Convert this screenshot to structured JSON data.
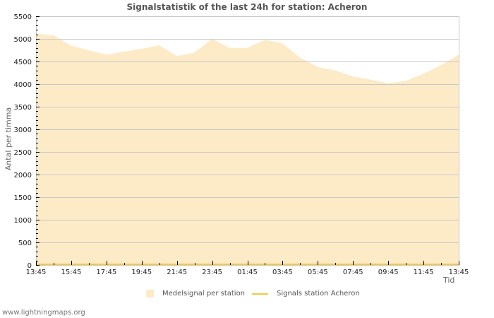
{
  "chart_data": {
    "type": "area",
    "title": "Signalstatistik of the last 24h for station: Acheron",
    "xlabel": "Tid",
    "ylabel": "Antal per timma",
    "ylim": [
      0,
      5500
    ],
    "yticks": [
      0,
      500,
      1000,
      1500,
      2000,
      2500,
      3000,
      3500,
      4000,
      4500,
      5000,
      5500
    ],
    "xtick_labels": [
      "13:45",
      "15:45",
      "17:45",
      "19:45",
      "21:45",
      "23:45",
      "01:45",
      "03:45",
      "05:45",
      "07:45",
      "09:45",
      "11:45",
      "13:45"
    ],
    "grid": true,
    "legend_position": "bottom",
    "x": [
      "13:45",
      "14:45",
      "15:45",
      "16:45",
      "17:45",
      "18:45",
      "19:45",
      "20:45",
      "21:45",
      "22:45",
      "23:45",
      "00:45",
      "01:45",
      "02:45",
      "03:45",
      "04:45",
      "05:45",
      "06:45",
      "07:45",
      "08:45",
      "09:45",
      "10:45",
      "11:45",
      "12:45",
      "13:45"
    ],
    "series": [
      {
        "name": "Medelsignal per station",
        "style": "area",
        "color": "#fdebc8",
        "values": [
          5120,
          5080,
          4850,
          4750,
          4650,
          4720,
          4780,
          4860,
          4620,
          4700,
          5000,
          4800,
          4800,
          4980,
          4900,
          4580,
          4380,
          4300,
          4170,
          4100,
          4020,
          4070,
          4230,
          4420,
          4650
        ]
      },
      {
        "name": "Signals station Acheron",
        "style": "line",
        "color": "#f5c842",
        "values": [
          0,
          0,
          0,
          0,
          0,
          0,
          0,
          0,
          0,
          0,
          0,
          0,
          0,
          0,
          0,
          0,
          0,
          0,
          0,
          0,
          0,
          0,
          0,
          0,
          0
        ]
      }
    ]
  },
  "legend": {
    "area_label": "Medelsignal per station",
    "line_label": "Signals station Acheron"
  },
  "footer": {
    "credit": "www.lightningmaps.org"
  }
}
